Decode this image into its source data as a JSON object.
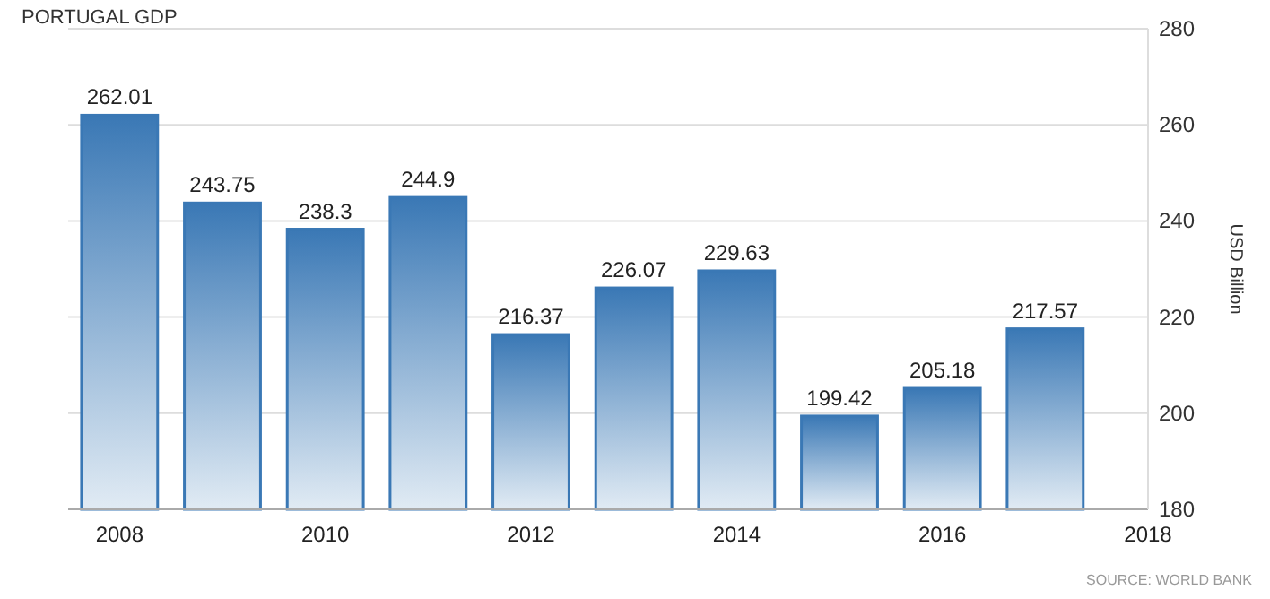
{
  "chart_data": {
    "type": "bar",
    "title": "PORTUGAL GDP",
    "ylabel": "USD Billion",
    "x": [
      2008,
      2009,
      2010,
      2011,
      2012,
      2013,
      2014,
      2015,
      2016,
      2017
    ],
    "values": [
      262.01,
      243.75,
      238.3,
      244.9,
      216.37,
      226.07,
      229.63,
      199.42,
      205.18,
      217.57
    ],
    "color": "#3a78b5",
    "data_labels": true,
    "xlim": [
      2007.5,
      2018
    ],
    "xticks": [
      2008,
      2010,
      2012,
      2014,
      2016,
      2018
    ],
    "ylim": [
      180,
      280
    ],
    "yticks": [
      180,
      200,
      220,
      240,
      260,
      280
    ],
    "grid": "y",
    "annotations": [
      "SOURCE: WORLD BANK"
    ]
  }
}
